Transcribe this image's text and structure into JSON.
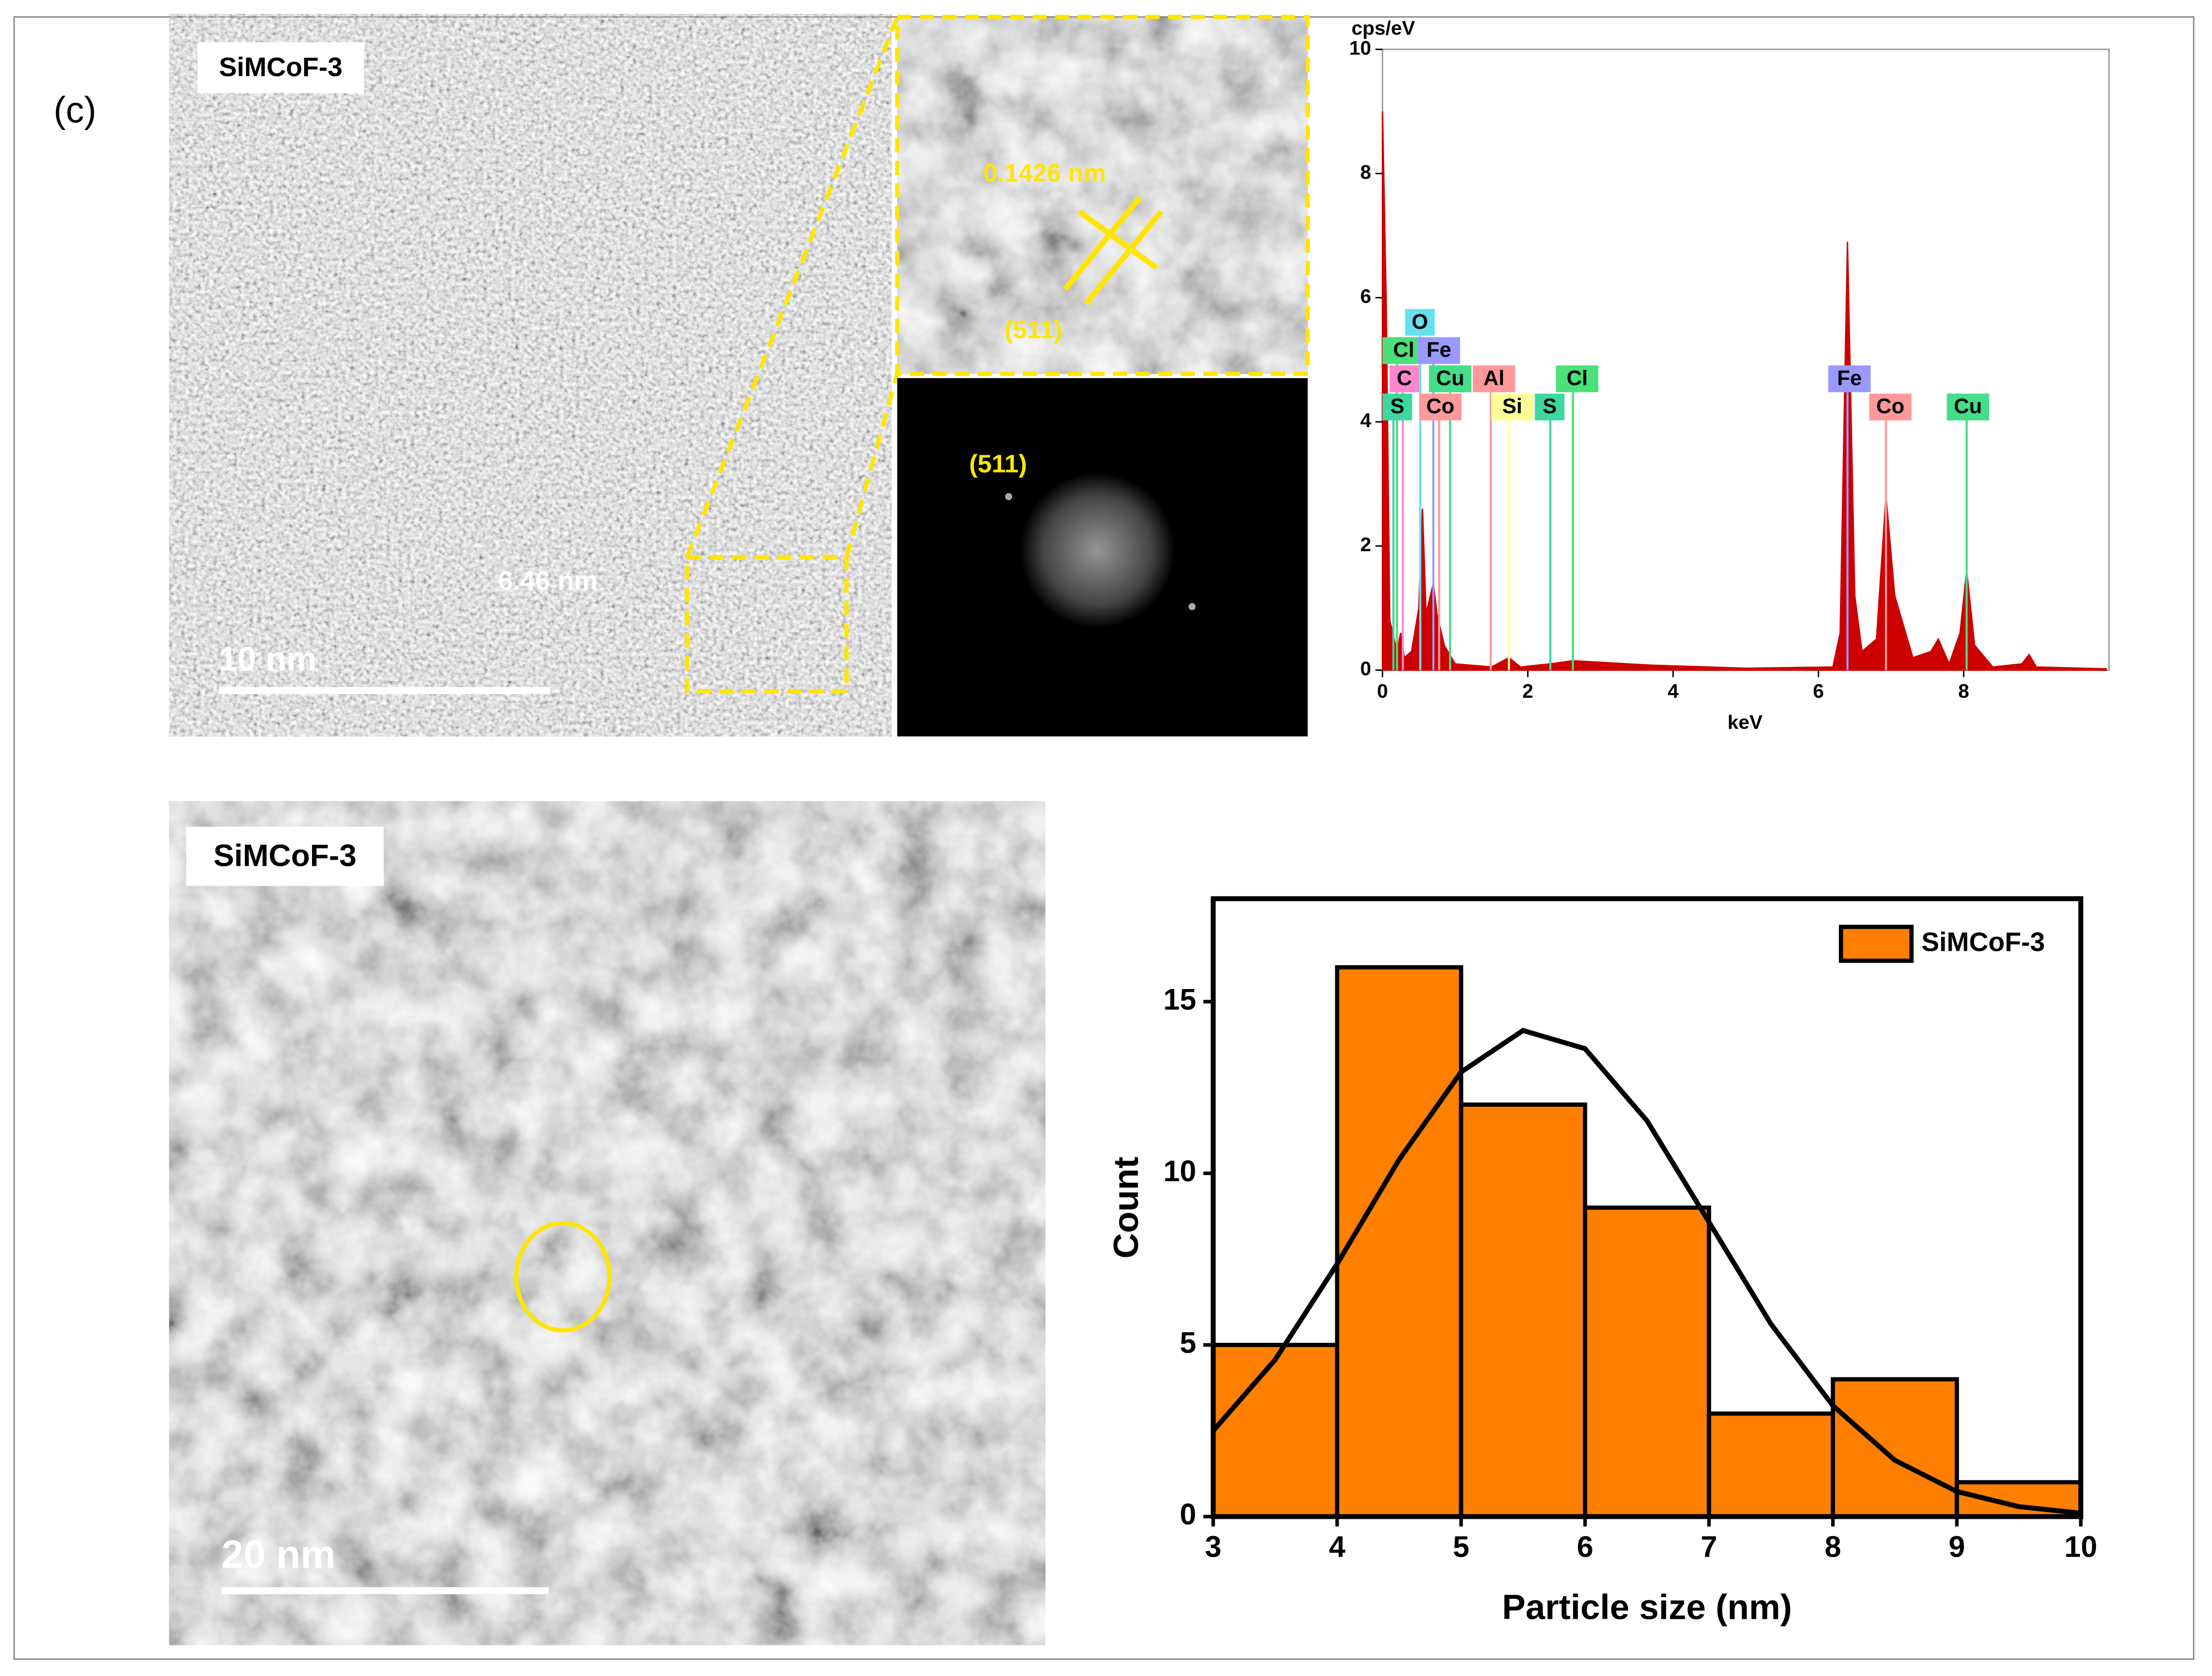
{
  "panel_label": "(c)",
  "images": [
    {
      "label": "SiMCoF-3",
      "scale_bar": "10 nm",
      "annotation": "6.46 nm"
    },
    {
      "label": "SiMCoF-3",
      "scale_bar": "20 nm"
    }
  ],
  "inset": {
    "spacing": "0.1426 nm",
    "plane": "(511)"
  },
  "fft": {
    "plane": "(511)"
  },
  "chart_data": [
    {
      "type": "histogram",
      "bins": [
        3,
        4,
        5,
        6,
        7,
        8,
        9,
        10
      ],
      "values": [
        5,
        16,
        12,
        9,
        3,
        4,
        1
      ],
      "series_name": "SiMCoF-3",
      "color": "#ff8000",
      "xlabel": "Particle size (nm)",
      "ylabel": "Count",
      "xlim": [
        3,
        10
      ],
      "ylim": [
        0,
        18
      ],
      "xticks": [
        3,
        4,
        5,
        6,
        7,
        8,
        9,
        10
      ],
      "yticks": [
        0,
        5,
        10,
        15
      ],
      "legend": "top-right",
      "fit": {
        "x": [
          3,
          3.5,
          4,
          4.5,
          5,
          5.5,
          6,
          6.5,
          7,
          7.5,
          8,
          8.5,
          9,
          9.5,
          10
        ],
        "values": [
          2.5,
          4.57,
          7.36,
          10.4,
          12.95,
          14.16,
          13.63,
          11.53,
          8.58,
          5.61,
          3.23,
          1.64,
          0.73,
          0.29,
          0.1
        ]
      }
    },
    {
      "type": "area",
      "ylabel": "cps/eV",
      "xlabel": "keV",
      "color": "#cc0000",
      "xlim": [
        0,
        10
      ],
      "ylim": [
        0,
        10
      ],
      "xticks": [
        0,
        2,
        4,
        6,
        8
      ],
      "yticks": [
        0,
        2,
        4,
        6,
        8,
        10
      ],
      "x": [
        0,
        0.05,
        0.1,
        0.2,
        0.25,
        0.3,
        0.4,
        0.5,
        0.55,
        0.6,
        0.7,
        0.75,
        0.85,
        1.0,
        1.5,
        1.74,
        1.9,
        2.3,
        2.62,
        3.69,
        5.0,
        6.2,
        6.3,
        6.4,
        6.5,
        6.6,
        6.8,
        6.93,
        7.05,
        7.3,
        7.55,
        7.65,
        7.8,
        7.95,
        8.04,
        8.15,
        8.4,
        8.8,
        8.9,
        9.0,
        9.96
      ],
      "values": [
        9.0,
        6.0,
        0.8,
        0.3,
        0.6,
        0.2,
        0.3,
        1.0,
        2.6,
        0.9,
        1.4,
        0.9,
        0.4,
        0.1,
        0.05,
        0.2,
        0.05,
        0.1,
        0.15,
        0.08,
        0.03,
        0.05,
        0.6,
        6.9,
        1.2,
        0.3,
        0.5,
        2.8,
        1.2,
        0.2,
        0.3,
        0.5,
        0.1,
        0.6,
        1.6,
        0.4,
        0.05,
        0.1,
        0.25,
        0.05,
        0.02
      ],
      "elements": [
        {
          "label": "O",
          "energy": 0.52,
          "color": "#66e0ee"
        },
        {
          "label": "Cl",
          "energy": 0.2,
          "color": "#4be07a"
        },
        {
          "label": "Fe",
          "energy": 0.7,
          "color": "#9999ff"
        },
        {
          "label": "C",
          "energy": 0.28,
          "color": "#ff88cc"
        },
        {
          "label": "Cu",
          "energy": 0.93,
          "color": "#44dd88"
        },
        {
          "label": "Al",
          "energy": 1.49,
          "color": "#ff9999"
        },
        {
          "label": "Cl",
          "energy": 2.62,
          "color": "#4be07a"
        },
        {
          "label": "Fe",
          "energy": 6.4,
          "color": "#9999ff"
        },
        {
          "label": "S",
          "energy": 0.15,
          "color": "#3cd8a0"
        },
        {
          "label": "Co",
          "energy": 0.78,
          "color": "#ff9999"
        },
        {
          "label": "Si",
          "energy": 1.74,
          "color": "#ffff99"
        },
        {
          "label": "S",
          "energy": 2.31,
          "color": "#3cd8a0"
        },
        {
          "label": "Co",
          "energy": 6.93,
          "color": "#ff9999"
        },
        {
          "label": "Cu",
          "energy": 8.04,
          "color": "#44dd88"
        }
      ]
    }
  ]
}
